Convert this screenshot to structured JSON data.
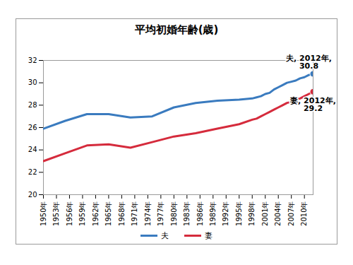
{
  "chart_data": {
    "type": "line",
    "title": "平均初婚年齢(歳)",
    "x": [
      1950,
      1955,
      1960,
      1965,
      1970,
      1975,
      1980,
      1985,
      1990,
      1995,
      1998,
      1999,
      2000,
      2001,
      2002,
      2003,
      2004,
      2005,
      2006,
      2007,
      2008,
      2009,
      2010,
      2011,
      2012
    ],
    "series": [
      {
        "name": "夫",
        "color": "#3a7bbf",
        "values": [
          25.9,
          26.6,
          27.2,
          27.2,
          26.9,
          27.0,
          27.8,
          28.2,
          28.4,
          28.5,
          28.6,
          28.7,
          28.8,
          29.0,
          29.1,
          29.4,
          29.6,
          29.8,
          30.0,
          30.1,
          30.2,
          30.4,
          30.5,
          30.7,
          30.8
        ]
      },
      {
        "name": "妻",
        "color": "#d52b3c",
        "values": [
          23.0,
          23.7,
          24.4,
          24.5,
          24.2,
          24.7,
          25.2,
          25.5,
          25.9,
          26.3,
          26.7,
          26.8,
          27.0,
          27.2,
          27.4,
          27.6,
          27.8,
          28.0,
          28.2,
          28.3,
          28.5,
          28.6,
          28.8,
          29.0,
          29.2
        ]
      }
    ],
    "xlim": [
      1950,
      2012
    ],
    "xticks": [
      {
        "value": 1950,
        "label": "1950年"
      },
      {
        "value": 1953,
        "label": "1953年"
      },
      {
        "value": 1956,
        "label": "1956年"
      },
      {
        "value": 1959,
        "label": "1959年"
      },
      {
        "value": 1962,
        "label": "1962年"
      },
      {
        "value": 1965,
        "label": "1965年"
      },
      {
        "value": 1968,
        "label": "1968年"
      },
      {
        "value": 1971,
        "label": "1971年"
      },
      {
        "value": 1974,
        "label": "1974年"
      },
      {
        "value": 1977,
        "label": "1977年"
      },
      {
        "value": 1980,
        "label": "1980年"
      },
      {
        "value": 1983,
        "label": "1983年"
      },
      {
        "value": 1986,
        "label": "1986年"
      },
      {
        "value": 1989,
        "label": "1989年"
      },
      {
        "value": 1992,
        "label": "1992年"
      },
      {
        "value": 1995,
        "label": "1995年"
      },
      {
        "value": 1998,
        "label": "1998年"
      },
      {
        "value": 2001,
        "label": "2001年"
      },
      {
        "value": 2004,
        "label": "2004年"
      },
      {
        "value": 2007,
        "label": "2007年"
      },
      {
        "value": 2010,
        "label": "2010年"
      }
    ],
    "ylim": [
      20,
      32
    ],
    "yticks": [
      20,
      22,
      24,
      26,
      28,
      30,
      32
    ],
    "grid": false,
    "legend": "bottom",
    "annotations": [
      {
        "series": "夫",
        "x": 2012,
        "y": 30.8,
        "text": "夫, 2012年,\n30.8"
      },
      {
        "series": "妻",
        "x": 2012,
        "y": 29.2,
        "text": "妻, 2012年,\n29.2"
      }
    ]
  }
}
